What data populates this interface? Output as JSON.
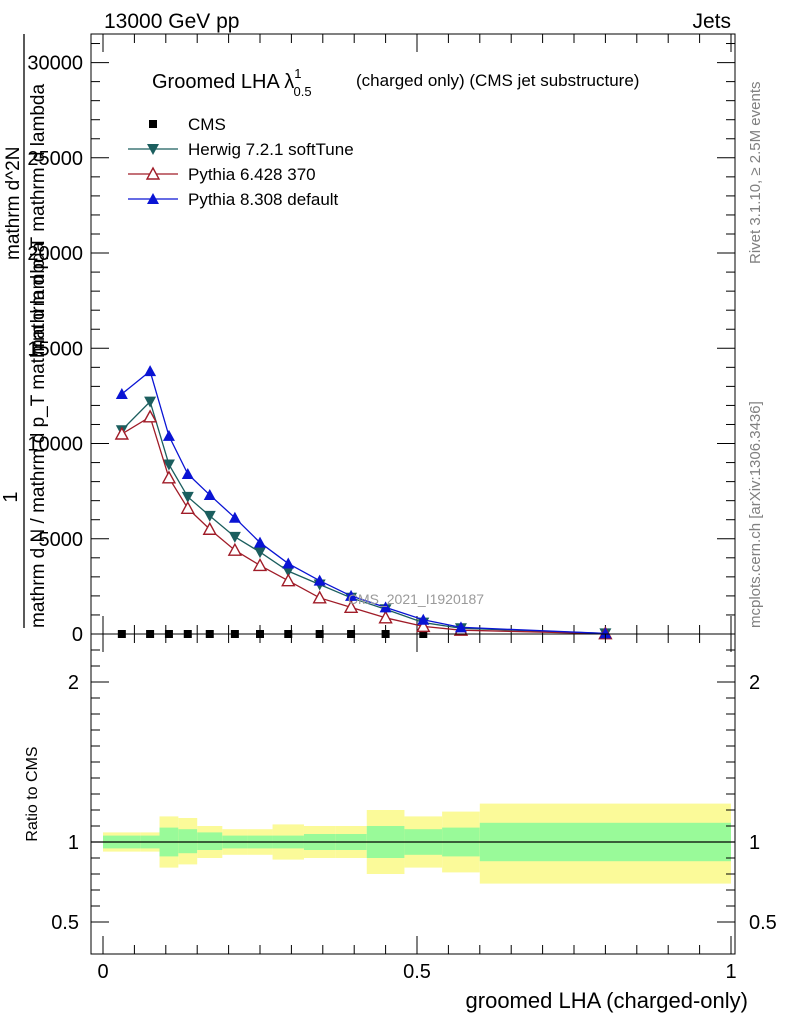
{
  "header": {
    "energy_label": "13000 GeV pp",
    "category_label": "Jets"
  },
  "side_text": {
    "rivet": "Rivet 3.1.10, ≥ 2.5M events",
    "mcplots": "mcplots.cern.ch [arXiv:1306.3436]"
  },
  "chart_data": [
    {
      "type": "line",
      "title": "Groomed LHA λ",
      "title_sup": "1",
      "title_sub": "0.5",
      "subtitle": "(charged only) (CMS jet substructure)",
      "ylabel": {
        "numerator": "1",
        "denominator": "mathrm d N / mathrm d p_T mathrm d lambda",
        "upper_num": "mathrm d^2N",
        "upper_den": "mathrm d p_T mathrm d lambda"
      },
      "analysis_id": "CMS_2021_I1920187",
      "xlim": [
        0,
        1
      ],
      "ylim": [
        0,
        31500
      ],
      "yticks": [
        0,
        5000,
        10000,
        15000,
        20000,
        25000,
        30000
      ],
      "ytick_labels": [
        "0",
        "5000",
        "10000",
        "15000",
        "20000",
        "25000",
        "30000"
      ],
      "grid": false,
      "legend_position": "top-left",
      "series": [
        {
          "name": "CMS",
          "color": "#000000",
          "marker": "square",
          "x": [
            0.03,
            0.075,
            0.105,
            0.135,
            0.17,
            0.21,
            0.25,
            0.295,
            0.345,
            0.395,
            0.45,
            0.51
          ],
          "y": [
            0,
            0,
            0,
            0,
            0,
            0,
            0,
            0,
            0,
            0,
            0,
            0
          ]
        },
        {
          "name": "Herwig 7.2.1 softTune",
          "color": "#1b5e5e",
          "marker": "triangle-down",
          "x": [
            0.03,
            0.075,
            0.105,
            0.135,
            0.17,
            0.21,
            0.25,
            0.295,
            0.345,
            0.395,
            0.45,
            0.51,
            0.57,
            0.8
          ],
          "y": [
            10700,
            12200,
            8900,
            7200,
            6200,
            5100,
            4300,
            3300,
            2600,
            1900,
            1300,
            600,
            300,
            30
          ]
        },
        {
          "name": "Pythia 6.428 370",
          "color": "#a01c28",
          "marker": "triangle-up-open",
          "x": [
            0.03,
            0.075,
            0.105,
            0.135,
            0.17,
            0.21,
            0.25,
            0.295,
            0.345,
            0.395,
            0.45,
            0.51,
            0.57,
            0.8
          ],
          "y": [
            10500,
            11400,
            8200,
            6600,
            5500,
            4400,
            3600,
            2800,
            1900,
            1400,
            850,
            400,
            200,
            20
          ]
        },
        {
          "name": "Pythia 8.308 default",
          "color": "#0a14d4",
          "marker": "triangle-up",
          "x": [
            0.03,
            0.075,
            0.105,
            0.135,
            0.17,
            0.21,
            0.25,
            0.295,
            0.345,
            0.395,
            0.45,
            0.51,
            0.57,
            0.8
          ],
          "y": [
            12600,
            13800,
            10400,
            8400,
            7300,
            6100,
            4800,
            3700,
            2800,
            2000,
            1400,
            750,
            350,
            30
          ]
        }
      ]
    },
    {
      "type": "area",
      "ylabel": "Ratio to CMS",
      "xlabel": "groomed LHA (charged-only)",
      "xlim": [
        0,
        1
      ],
      "ylim": [
        0.3,
        2.3
      ],
      "yticks": [
        0.5,
        1,
        2
      ],
      "ytick_labels": [
        "0.5",
        "1",
        "2"
      ],
      "xticks": [
        0,
        0.5,
        1
      ],
      "xtick_labels": [
        "0",
        "0.5",
        "1"
      ],
      "grid": false,
      "reference_line": 1,
      "bins": [
        0,
        0.06,
        0.09,
        0.12,
        0.15,
        0.19,
        0.23,
        0.27,
        0.32,
        0.37,
        0.42,
        0.48,
        0.54,
        0.6,
        1.0
      ],
      "band_stat": {
        "color": "#99fa99",
        "upper": [
          1.04,
          1.04,
          1.09,
          1.08,
          1.06,
          1.04,
          1.04,
          1.04,
          1.05,
          1.05,
          1.1,
          1.08,
          1.09,
          1.12
        ],
        "lower": [
          0.96,
          0.96,
          0.91,
          0.93,
          0.95,
          0.96,
          0.96,
          0.96,
          0.95,
          0.95,
          0.9,
          0.92,
          0.91,
          0.88
        ]
      },
      "band_total": {
        "color": "#fbfa99",
        "upper": [
          1.06,
          1.06,
          1.16,
          1.15,
          1.1,
          1.08,
          1.08,
          1.11,
          1.1,
          1.1,
          1.2,
          1.16,
          1.19,
          1.24
        ],
        "lower": [
          0.94,
          0.94,
          0.84,
          0.86,
          0.9,
          0.92,
          0.92,
          0.89,
          0.9,
          0.9,
          0.8,
          0.84,
          0.81,
          0.74
        ]
      }
    }
  ]
}
